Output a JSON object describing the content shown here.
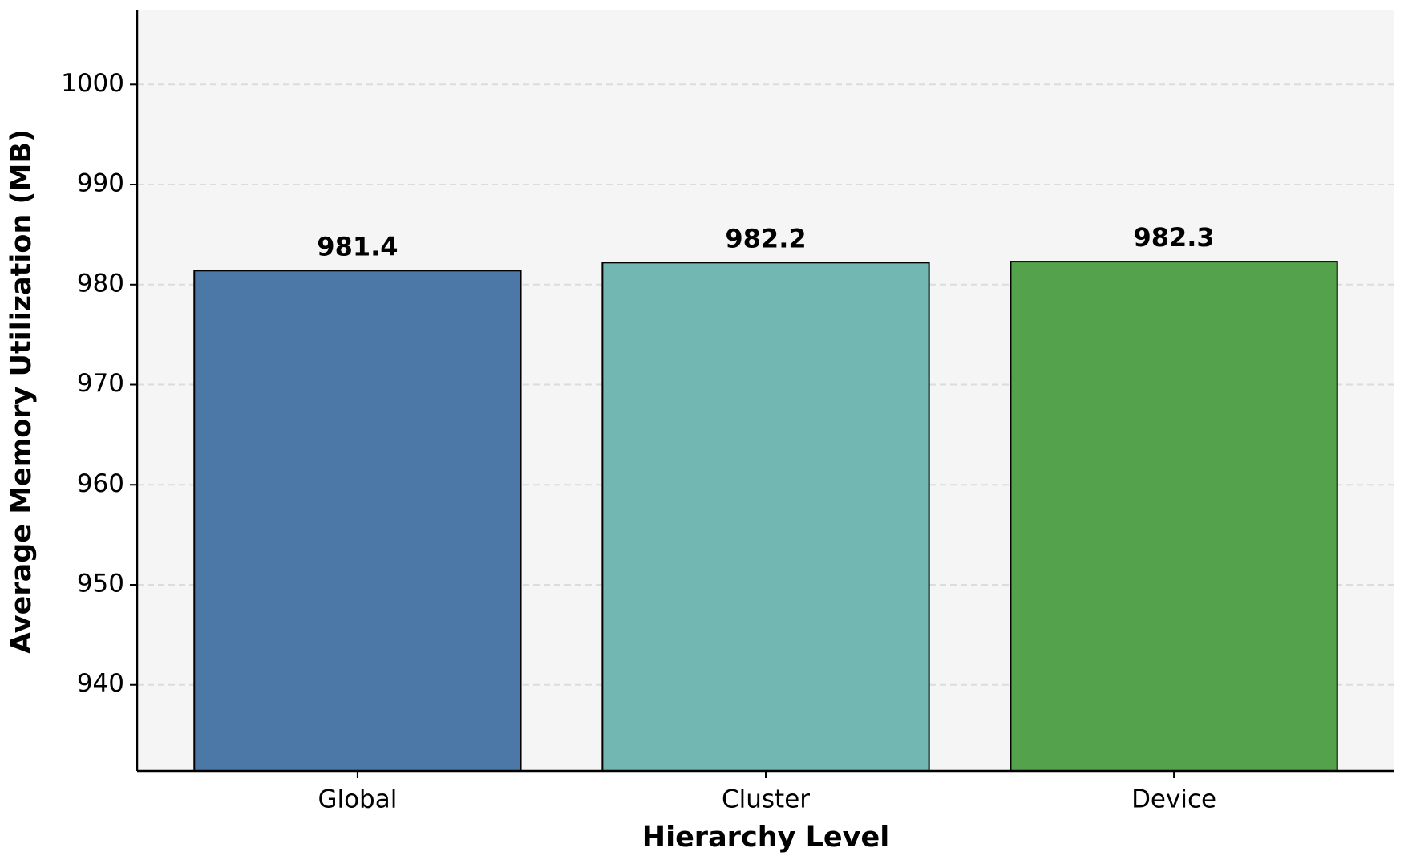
{
  "chart_data": {
    "type": "bar",
    "x_label": "Hierarchy Level",
    "y_label": "Average Memory Utilization (MB)",
    "categories": [
      "Global",
      "Cluster",
      "Device"
    ],
    "values": [
      981.4,
      982.2,
      982.3
    ],
    "colors": [
      "#4c78a8",
      "#72b7b2",
      "#54a24b"
    ],
    "ylim": [
      931.4,
      1007.4
    ],
    "yticks": [
      940,
      950,
      960,
      970,
      980,
      990,
      1000
    ],
    "grid": true
  }
}
